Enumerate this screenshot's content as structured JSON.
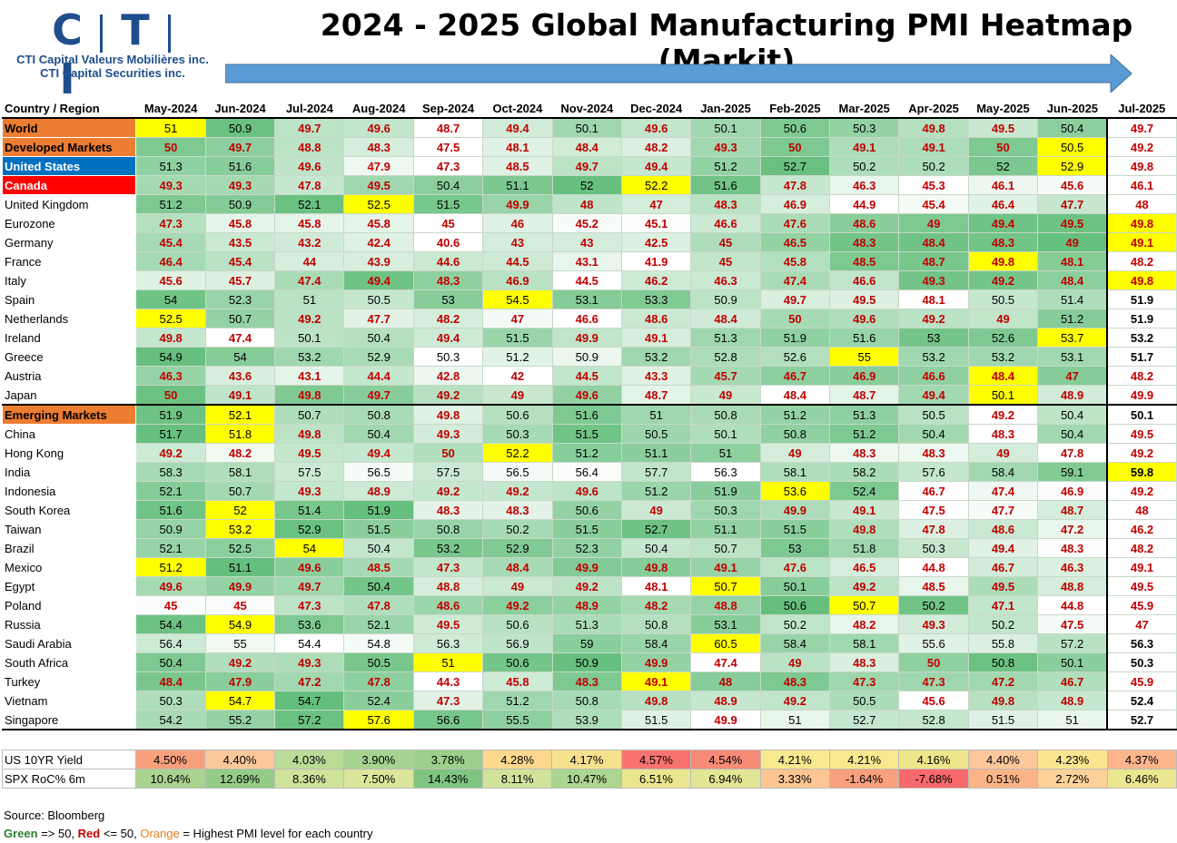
{
  "logo": {
    "letters": [
      "C",
      "T",
      "I"
    ],
    "line1": "CTI Capital Valeurs Mobilières inc.",
    "line2": "CTI Capital Securities inc."
  },
  "title": "2024 - 2025 Global Manufacturing PMI Heatmap (Markit)",
  "chart_data": {
    "type": "table",
    "corner": "Country / Region",
    "columns": [
      "May-2024",
      "Jun-2024",
      "Jul-2024",
      "Aug-2024",
      "Sep-2024",
      "Oct-2024",
      "Nov-2024",
      "Dec-2024",
      "Jan-2025",
      "Feb-2025",
      "Mar-2025",
      "Apr-2025",
      "May-2025",
      "Jun-2025",
      "Jul-2025"
    ],
    "rows": [
      {
        "name": "World",
        "header": "orange",
        "values": [
          51,
          50.9,
          49.7,
          49.6,
          48.7,
          49.4,
          50.1,
          49.6,
          50.1,
          50.6,
          50.3,
          49.8,
          49.5,
          50.4,
          49.7
        ],
        "max": 0
      },
      {
        "name": "Developed Markets",
        "header": "orange",
        "values": [
          50,
          49.7,
          48.8,
          48.3,
          47.5,
          48.1,
          48.4,
          48.2,
          49.3,
          50,
          49.1,
          49.1,
          50,
          50.5,
          49.2
        ],
        "max": 13
      },
      {
        "name": "United States",
        "header": "blue",
        "values": [
          51.3,
          51.6,
          49.6,
          47.9,
          47.3,
          48.5,
          49.7,
          49.4,
          51.2,
          52.7,
          50.2,
          50.2,
          52,
          52.9,
          49.8
        ],
        "max": 13
      },
      {
        "name": "Canada",
        "header": "red",
        "values": [
          49.3,
          49.3,
          47.8,
          49.5,
          50.4,
          51.1,
          52,
          52.2,
          51.6,
          47.8,
          46.3,
          45.3,
          46.1,
          45.6,
          46.1
        ],
        "max": 7
      },
      {
        "name": "United Kingdom",
        "values": [
          51.2,
          50.9,
          52.1,
          52.5,
          51.5,
          49.9,
          48,
          47,
          48.3,
          46.9,
          44.9,
          45.4,
          46.4,
          47.7,
          48
        ],
        "max": 3
      },
      {
        "name": "Eurozone",
        "values": [
          47.3,
          45.8,
          45.8,
          45.8,
          45,
          46,
          45.2,
          45.1,
          46.6,
          47.6,
          48.6,
          49,
          49.4,
          49.5,
          49.8
        ],
        "max": 14
      },
      {
        "name": "Germany",
        "values": [
          45.4,
          43.5,
          43.2,
          42.4,
          40.6,
          43,
          43,
          42.5,
          45,
          46.5,
          48.3,
          48.4,
          48.3,
          49,
          49.1
        ],
        "max": 14
      },
      {
        "name": "France",
        "values": [
          46.4,
          45.4,
          44,
          43.9,
          44.6,
          44.5,
          43.1,
          41.9,
          45,
          45.8,
          48.5,
          48.7,
          49.8,
          48.1,
          48.2
        ],
        "max": 12
      },
      {
        "name": "Italy",
        "values": [
          45.6,
          45.7,
          47.4,
          49.4,
          48.3,
          46.9,
          44.5,
          46.2,
          46.3,
          47.4,
          46.6,
          49.3,
          49.2,
          48.4,
          49.8
        ],
        "max": 14
      },
      {
        "name": "Spain",
        "values": [
          54,
          52.3,
          51,
          50.5,
          53,
          54.5,
          53.1,
          53.3,
          50.9,
          49.7,
          49.5,
          48.1,
          50.5,
          51.4,
          51.9
        ],
        "max": 5
      },
      {
        "name": "Netherlands",
        "values": [
          52.5,
          50.7,
          49.2,
          47.7,
          48.2,
          47,
          46.6,
          48.6,
          48.4,
          50,
          49.6,
          49.2,
          49,
          51.2,
          51.9
        ],
        "max": 0
      },
      {
        "name": "Ireland",
        "values": [
          49.8,
          47.4,
          50.1,
          50.4,
          49.4,
          51.5,
          49.9,
          49.1,
          51.3,
          51.9,
          51.6,
          53,
          52.6,
          53.7,
          53.2
        ],
        "max": 13
      },
      {
        "name": "Greece",
        "values": [
          54.9,
          54,
          53.2,
          52.9,
          50.3,
          51.2,
          50.9,
          53.2,
          52.8,
          52.6,
          55,
          53.2,
          53.2,
          53.1,
          51.7
        ],
        "max": 10
      },
      {
        "name": "Austria",
        "values": [
          46.3,
          43.6,
          43.1,
          44.4,
          42.8,
          42,
          44.5,
          43.3,
          45.7,
          46.7,
          46.9,
          46.6,
          48.4,
          47,
          48.2
        ],
        "max": 12
      },
      {
        "name": "Japan",
        "values": [
          50,
          49.1,
          49.8,
          49.7,
          49.2,
          49,
          49.6,
          48.7,
          49,
          48.4,
          48.7,
          49.4,
          50.1,
          48.9,
          49.9
        ],
        "max": 12
      },
      {
        "name": "Emerging Markets",
        "header": "orange",
        "values": [
          51.9,
          52.1,
          50.7,
          50.8,
          49.8,
          50.6,
          51.6,
          51,
          50.8,
          51.2,
          51.3,
          50.5,
          49.2,
          50.4,
          50.1
        ],
        "max": 1
      },
      {
        "name": "China",
        "values": [
          51.7,
          51.8,
          49.8,
          50.4,
          49.3,
          50.3,
          51.5,
          50.5,
          50.1,
          50.8,
          51.2,
          50.4,
          48.3,
          50.4,
          49.5
        ],
        "max": 1
      },
      {
        "name": "Hong Kong",
        "values": [
          49.2,
          48.2,
          49.5,
          49.4,
          50,
          52.2,
          51.2,
          51.1,
          51,
          49,
          48.3,
          48.3,
          49,
          47.8,
          49.2
        ],
        "max": 5
      },
      {
        "name": "India",
        "values": [
          58.3,
          58.1,
          57.5,
          56.5,
          57.5,
          56.5,
          56.4,
          57.7,
          56.3,
          58.1,
          58.2,
          57.6,
          58.4,
          59.1,
          59.8
        ],
        "max": 14
      },
      {
        "name": "Indonesia",
        "values": [
          52.1,
          50.7,
          49.3,
          48.9,
          49.2,
          49.2,
          49.6,
          51.2,
          51.9,
          53.6,
          52.4,
          46.7,
          47.4,
          46.9,
          49.2
        ],
        "max": 9
      },
      {
        "name": "South Korea",
        "values": [
          51.6,
          52,
          51.4,
          51.9,
          48.3,
          48.3,
          50.6,
          49,
          50.3,
          49.9,
          49.1,
          47.5,
          47.7,
          48.7,
          48
        ],
        "max": 1
      },
      {
        "name": "Taiwan",
        "values": [
          50.9,
          53.2,
          52.9,
          51.5,
          50.8,
          50.2,
          51.5,
          52.7,
          51.1,
          51.5,
          49.8,
          47.8,
          48.6,
          47.2,
          46.2
        ],
        "max": 1
      },
      {
        "name": "Brazil",
        "values": [
          52.1,
          52.5,
          54,
          50.4,
          53.2,
          52.9,
          52.3,
          50.4,
          50.7,
          53,
          51.8,
          50.3,
          49.4,
          48.3,
          48.2
        ],
        "max": 2
      },
      {
        "name": "Mexico",
        "values": [
          51.2,
          51.1,
          49.6,
          48.5,
          47.3,
          48.4,
          49.9,
          49.8,
          49.1,
          47.6,
          46.5,
          44.8,
          46.7,
          46.3,
          49.1
        ],
        "max": 0
      },
      {
        "name": "Egypt",
        "values": [
          49.6,
          49.9,
          49.7,
          50.4,
          48.8,
          49,
          49.2,
          48.1,
          50.7,
          50.1,
          49.2,
          48.5,
          49.5,
          48.8,
          49.5
        ],
        "max": 8
      },
      {
        "name": "Poland",
        "values": [
          45,
          45,
          47.3,
          47.8,
          48.6,
          49.2,
          48.9,
          48.2,
          48.8,
          50.6,
          50.7,
          50.2,
          47.1,
          44.8,
          45.9
        ],
        "max": 10
      },
      {
        "name": "Russia",
        "values": [
          54.4,
          54.9,
          53.6,
          52.1,
          49.5,
          50.6,
          51.3,
          50.8,
          53.1,
          50.2,
          48.2,
          49.3,
          50.2,
          47.5,
          47
        ],
        "max": 1
      },
      {
        "name": "Saudi Arabia",
        "values": [
          56.4,
          55,
          54.4,
          54.8,
          56.3,
          56.9,
          59,
          58.4,
          60.5,
          58.4,
          58.1,
          55.6,
          55.8,
          57.2,
          56.3
        ],
        "max": 8
      },
      {
        "name": "South Africa",
        "values": [
          50.4,
          49.2,
          49.3,
          50.5,
          51,
          50.6,
          50.9,
          49.9,
          47.4,
          49,
          48.3,
          50,
          50.8,
          50.1,
          50.3
        ],
        "max": 4
      },
      {
        "name": "Turkey",
        "values": [
          48.4,
          47.9,
          47.2,
          47.8,
          44.3,
          45.8,
          48.3,
          49.1,
          48,
          48.3,
          47.3,
          47.3,
          47.2,
          46.7,
          45.9
        ],
        "max": 7
      },
      {
        "name": "Vietnam",
        "values": [
          50.3,
          54.7,
          54.7,
          52.4,
          47.3,
          51.2,
          50.8,
          49.8,
          48.9,
          49.2,
          50.5,
          45.6,
          49.8,
          48.9,
          52.4
        ],
        "max": 1
      },
      {
        "name": "Singapore",
        "values": [
          54.2,
          55.2,
          57.2,
          57.6,
          56.6,
          55.5,
          53.9,
          51.5,
          49.9,
          51,
          52.7,
          52.8,
          51.5,
          51,
          52.7
        ],
        "max": 3
      }
    ],
    "markets": [
      {
        "name": "US 10YR Yield",
        "values": [
          "4.50%",
          "4.40%",
          "4.03%",
          "3.90%",
          "3.78%",
          "4.28%",
          "4.17%",
          "4.57%",
          "4.54%",
          "4.21%",
          "4.21%",
          "4.16%",
          "4.40%",
          "4.23%",
          "4.37%"
        ],
        "colors": [
          "#f8a07c",
          "#fcc79a",
          "#b9dd98",
          "#a6d490",
          "#9cd08c",
          "#fdd88e",
          "#f6e08e",
          "#f8736f",
          "#f88b77",
          "#f9e98e",
          "#f9e98e",
          "#ede68a",
          "#fcc79a",
          "#fbe68f",
          "#fcb58c"
        ]
      },
      {
        "name": "SPX RoC% 6m",
        "values": [
          "10.64%",
          "12.69%",
          "8.36%",
          "7.50%",
          "14.43%",
          "8.11%",
          "10.47%",
          "6.51%",
          "6.94%",
          "3.33%",
          "-1.64%",
          "-7.68%",
          "0.51%",
          "2.72%",
          "6.46%"
        ],
        "colors": [
          "#a8d48f",
          "#94cc88",
          "#cfe39a",
          "#dbe69a",
          "#7fc581",
          "#d1e39a",
          "#acd590",
          "#eae68f",
          "#e2e593",
          "#fcc592",
          "#f9a07e",
          "#f8696b",
          "#fbb487",
          "#fcd19a",
          "#ebe690"
        ]
      }
    ]
  },
  "colors": {
    "orange": "#ed7d31",
    "blue": "#0070c0",
    "red": "#ff0000",
    "yellow": "#ffff00"
  },
  "footer": {
    "source": "Source: Bloomberg",
    "green": "Green",
    "green_rule": " => 50, ",
    "red": "Red",
    "red_rule": " <= 50, ",
    "orange": "Orange",
    "orange_rule": " = Highest PMI level for each country"
  }
}
